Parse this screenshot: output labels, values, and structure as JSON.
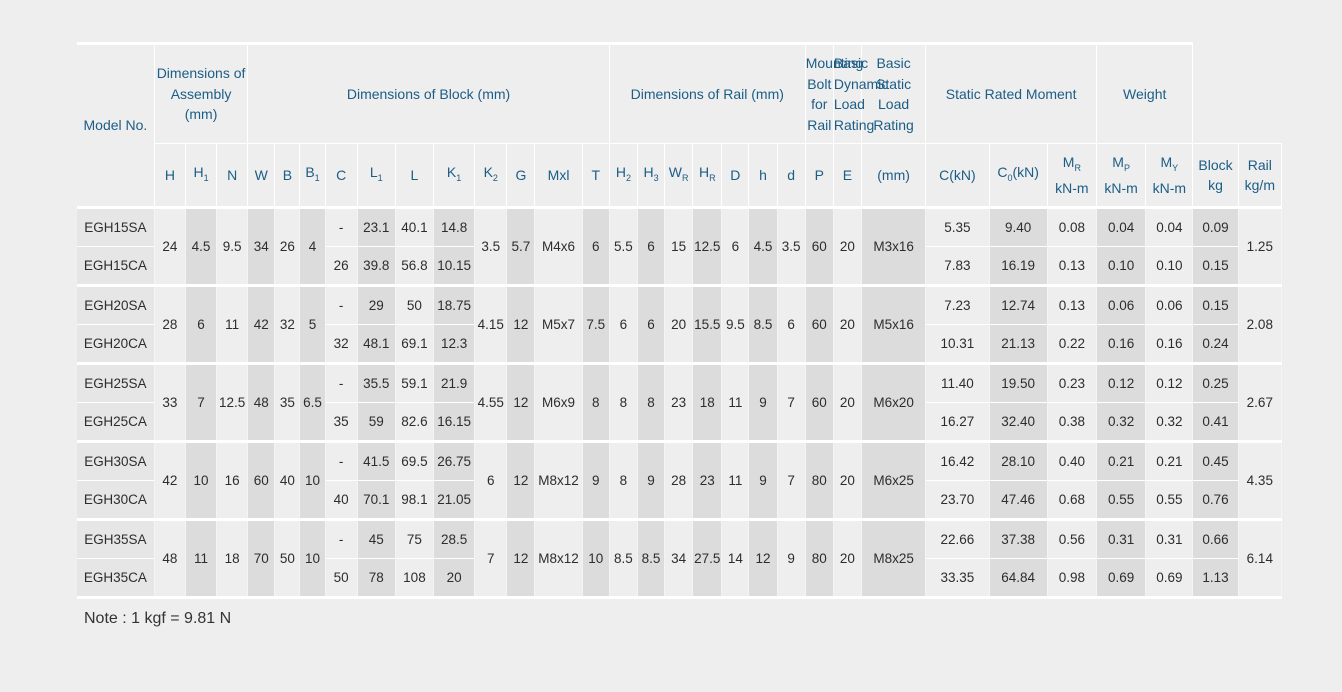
{
  "headers": {
    "model": "Model No.",
    "assembly": "Dimensions of Assembly (mm)",
    "block": "Dimensions of Block (mm)",
    "rail": "Dimensions of Rail (mm)",
    "bolt": "Mounting Bolt for Rail",
    "dynamic": "Basic Dynamic Load Rating",
    "static": "Basic Static Load Rating",
    "moment": "Static Rated Moment",
    "weight": "Weight",
    "sub": {
      "H": "H",
      "H1": "H",
      "N": "N",
      "W": "W",
      "B": "B",
      "B1": "B",
      "C": "C",
      "L1": "L",
      "L": "L",
      "K1": "K",
      "K2": "K",
      "G": "G",
      "Mxl": "Mxl",
      "T": "T",
      "H2": "H",
      "H3": "H",
      "WR": "W",
      "HR": "H",
      "D": "D",
      "h": "h",
      "d": "d",
      "P": "P",
      "E": "E",
      "bolt_unit": "(mm)",
      "C_kN": "C(kN)",
      "C0_kN": "C",
      "C0_unit": "(kN)",
      "MR": "M",
      "MP": "M",
      "MY": "M",
      "MR_unit": "kN-m",
      "MP_unit": "kN-m",
      "MY_unit": "kN-m",
      "block": "Block",
      "block_unit": "kg",
      "rail": "Rail",
      "rail_unit": "kg/m"
    },
    "subscripts": {
      "one": "1",
      "two": "2",
      "three": "3",
      "R": "R",
      "P": "P",
      "Y": "Y",
      "zero": "0"
    }
  },
  "groups": [
    {
      "H": "24",
      "H1": "4.5",
      "N": "9.5",
      "W": "34",
      "B": "26",
      "B1": "4",
      "K2": "3.5",
      "G": "5.7",
      "Mxl": "M4x6",
      "T": "6",
      "H2": "5.5",
      "H3": "6",
      "WR": "15",
      "HR": "12.5",
      "D": "6",
      "h": "4.5",
      "d": "3.5",
      "P": "60",
      "E": "20",
      "bolt": "M3x16",
      "rail_weight": "1.25",
      "rows": [
        {
          "model": "EGH15SA",
          "C": "-",
          "L1": "23.1",
          "L": "40.1",
          "K1": "14.8",
          "Cdyn": "5.35",
          "C0": "9.40",
          "MR": "0.08",
          "MP": "0.04",
          "MY": "0.04",
          "block": "0.09"
        },
        {
          "model": "EGH15CA",
          "C": "26",
          "L1": "39.8",
          "L": "56.8",
          "K1": "10.15",
          "Cdyn": "7.83",
          "C0": "16.19",
          "MR": "0.13",
          "MP": "0.10",
          "MY": "0.10",
          "block": "0.15"
        }
      ]
    },
    {
      "H": "28",
      "H1": "6",
      "N": "11",
      "W": "42",
      "B": "32",
      "B1": "5",
      "K2": "4.15",
      "G": "12",
      "Mxl": "M5x7",
      "T": "7.5",
      "H2": "6",
      "H3": "6",
      "WR": "20",
      "HR": "15.5",
      "D": "9.5",
      "h": "8.5",
      "d": "6",
      "P": "60",
      "E": "20",
      "bolt": "M5x16",
      "rail_weight": "2.08",
      "rows": [
        {
          "model": "EGH20SA",
          "C": "-",
          "L1": "29",
          "L": "50",
          "K1": "18.75",
          "Cdyn": "7.23",
          "C0": "12.74",
          "MR": "0.13",
          "MP": "0.06",
          "MY": "0.06",
          "block": "0.15"
        },
        {
          "model": "EGH20CA",
          "C": "32",
          "L1": "48.1",
          "L": "69.1",
          "K1": "12.3",
          "Cdyn": "10.31",
          "C0": "21.13",
          "MR": "0.22",
          "MP": "0.16",
          "MY": "0.16",
          "block": "0.24"
        }
      ]
    },
    {
      "H": "33",
      "H1": "7",
      "N": "12.5",
      "W": "48",
      "B": "35",
      "B1": "6.5",
      "K2": "4.55",
      "G": "12",
      "Mxl": "M6x9",
      "T": "8",
      "H2": "8",
      "H3": "8",
      "WR": "23",
      "HR": "18",
      "D": "11",
      "h": "9",
      "d": "7",
      "P": "60",
      "E": "20",
      "bolt": "M6x20",
      "rail_weight": "2.67",
      "rows": [
        {
          "model": "EGH25SA",
          "C": "-",
          "L1": "35.5",
          "L": "59.1",
          "K1": "21.9",
          "Cdyn": "11.40",
          "C0": "19.50",
          "MR": "0.23",
          "MP": "0.12",
          "MY": "0.12",
          "block": "0.25"
        },
        {
          "model": "EGH25CA",
          "C": "35",
          "L1": "59",
          "L": "82.6",
          "K1": "16.15",
          "Cdyn": "16.27",
          "C0": "32.40",
          "MR": "0.38",
          "MP": "0.32",
          "MY": "0.32",
          "block": "0.41"
        }
      ]
    },
    {
      "H": "42",
      "H1": "10",
      "N": "16",
      "W": "60",
      "B": "40",
      "B1": "10",
      "K2": "6",
      "G": "12",
      "Mxl": "M8x12",
      "T": "9",
      "H2": "8",
      "H3": "9",
      "WR": "28",
      "HR": "23",
      "D": "11",
      "h": "9",
      "d": "7",
      "P": "80",
      "E": "20",
      "bolt": "M6x25",
      "rail_weight": "4.35",
      "rows": [
        {
          "model": "EGH30SA",
          "C": "-",
          "L1": "41.5",
          "L": "69.5",
          "K1": "26.75",
          "Cdyn": "16.42",
          "C0": "28.10",
          "MR": "0.40",
          "MP": "0.21",
          "MY": "0.21",
          "block": "0.45"
        },
        {
          "model": "EGH30CA",
          "C": "40",
          "L1": "70.1",
          "L": "98.1",
          "K1": "21.05",
          "Cdyn": "23.70",
          "C0": "47.46",
          "MR": "0.68",
          "MP": "0.55",
          "MY": "0.55",
          "block": "0.76"
        }
      ]
    },
    {
      "H": "48",
      "H1": "11",
      "N": "18",
      "W": "70",
      "B": "50",
      "B1": "10",
      "K2": "7",
      "G": "12",
      "Mxl": "M8x12",
      "T": "10",
      "H2": "8.5",
      "H3": "8.5",
      "WR": "34",
      "HR": "27.5",
      "D": "14",
      "h": "12",
      "d": "9",
      "P": "80",
      "E": "20",
      "bolt": "M8x25",
      "rail_weight": "6.14",
      "rows": [
        {
          "model": "EGH35SA",
          "C": "-",
          "L1": "45",
          "L": "75",
          "K1": "28.5",
          "Cdyn": "22.66",
          "C0": "37.38",
          "MR": "0.56",
          "MP": "0.31",
          "MY": "0.31",
          "block": "0.66"
        },
        {
          "model": "EGH35CA",
          "C": "50",
          "L1": "78",
          "L": "108",
          "K1": "20",
          "Cdyn": "33.35",
          "C0": "64.84",
          "MR": "0.98",
          "MP": "0.69",
          "MY": "0.69",
          "block": "1.13"
        }
      ]
    }
  ],
  "note": "Note : 1 kgf = 9.81 N"
}
